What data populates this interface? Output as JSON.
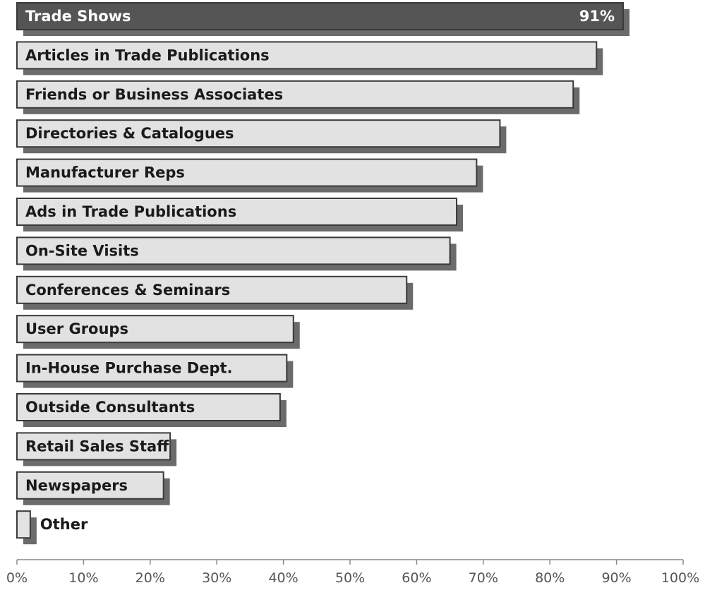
{
  "chart_data": {
    "type": "bar",
    "orientation": "horizontal",
    "title": "",
    "xlabel": "",
    "ylabel": "",
    "xlim": [
      0,
      100
    ],
    "grid": false,
    "categories": [
      "Trade Shows",
      "Articles in Trade Publications",
      "Friends or Business Associates",
      "Directories & Catalogues",
      "Manufacturer Reps",
      "Ads in Trade Publications",
      "On-Site Visits",
      "Conferences & Seminars",
      "User Groups",
      "In-House Purchase Dept.",
      "Outside Consultants",
      "Retail Sales Staff",
      "Newspapers",
      "Other"
    ],
    "values": [
      91,
      87,
      83.5,
      72.5,
      69,
      66,
      65,
      58.5,
      41.5,
      40.5,
      39.5,
      23,
      22,
      2
    ],
    "data_labels": [
      "91%",
      "",
      "",
      "",
      "",
      "",
      "",
      "",
      "",
      "",
      "",
      "",
      "",
      ""
    ],
    "highlight_index": 0,
    "ticks": [
      "0%",
      "10%",
      "20%",
      "30%",
      "40%",
      "50%",
      "60%",
      "70%",
      "80%",
      "90%",
      "100%"
    ],
    "colors": {
      "highlight_bar": "#555555",
      "bar_fill": "#e2e2e2",
      "bar_border": "#3a3a3a",
      "shadow": "#6b6b6b",
      "axis": "#888888"
    }
  }
}
